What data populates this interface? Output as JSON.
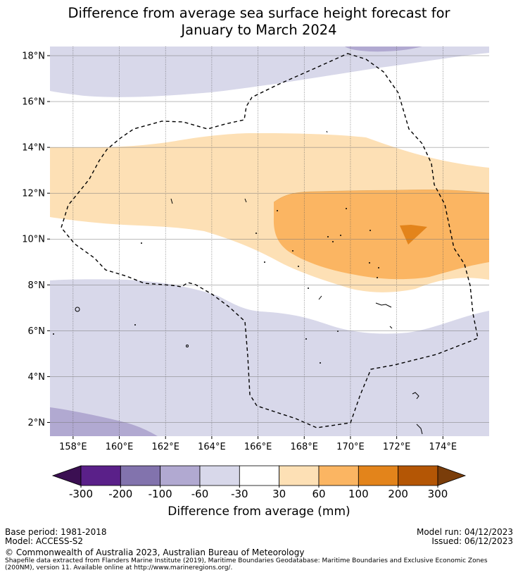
{
  "title": {
    "line1": "Difference from average sea surface height forecast for",
    "line2": "January to March 2024"
  },
  "chart_data": {
    "type": "contour-map",
    "variable": "Difference from average sea surface height",
    "units": "mm",
    "lon_range": [
      157.0,
      176.0
    ],
    "lat_range": [
      1.4,
      18.4
    ],
    "x_ticks": [
      158,
      160,
      162,
      164,
      166,
      168,
      170,
      172,
      174
    ],
    "x_tick_labels": [
      "158°E",
      "160°E",
      "162°E",
      "164°E",
      "166°E",
      "168°E",
      "170°E",
      "172°E",
      "174°E"
    ],
    "y_ticks": [
      2,
      4,
      6,
      8,
      10,
      12,
      14,
      16,
      18
    ],
    "y_tick_labels": [
      "2°N",
      "4°N",
      "6°N",
      "8°N",
      "10°N",
      "12°N",
      "14°N",
      "16°N",
      "18°N"
    ],
    "grid": true,
    "eez_boundary": "dashed",
    "colorbar": {
      "label": "Difference from average (mm)",
      "levels": [
        -300,
        -200,
        -100,
        -60,
        -30,
        30,
        60,
        100,
        200,
        300
      ],
      "level_labels": [
        "-300",
        "-200",
        "-100",
        "-60",
        "-30",
        "30",
        "60",
        "100",
        "200",
        "300"
      ],
      "under_color": "#3b0f52",
      "over_color": "#7a3d0a",
      "colors": [
        "#5a2089",
        "#8273ad",
        "#b1a9d1",
        "#d8d8ea",
        "#ffffff",
        "#fde0b5",
        "#fbb562",
        "#e3841b",
        "#b45605"
      ]
    }
  },
  "footer": {
    "base_period": "Base period: 1981-2018",
    "model": "Model: ACCESS-S2",
    "model_run": "Model run: 04/12/2023",
    "issued": "Issued: 06/12/2023",
    "copyright": "© Commonwealth of Australia 2023, Australian Bureau of Meteorology",
    "credit": "Shapefile data extracted from Flanders Marine Institute (2019), Maritime Boundaries Geodatabase: Maritime Boundaries and Exclusive Economic Zones (200NM), version 11. Available online at http://www.marineregions.org/."
  }
}
